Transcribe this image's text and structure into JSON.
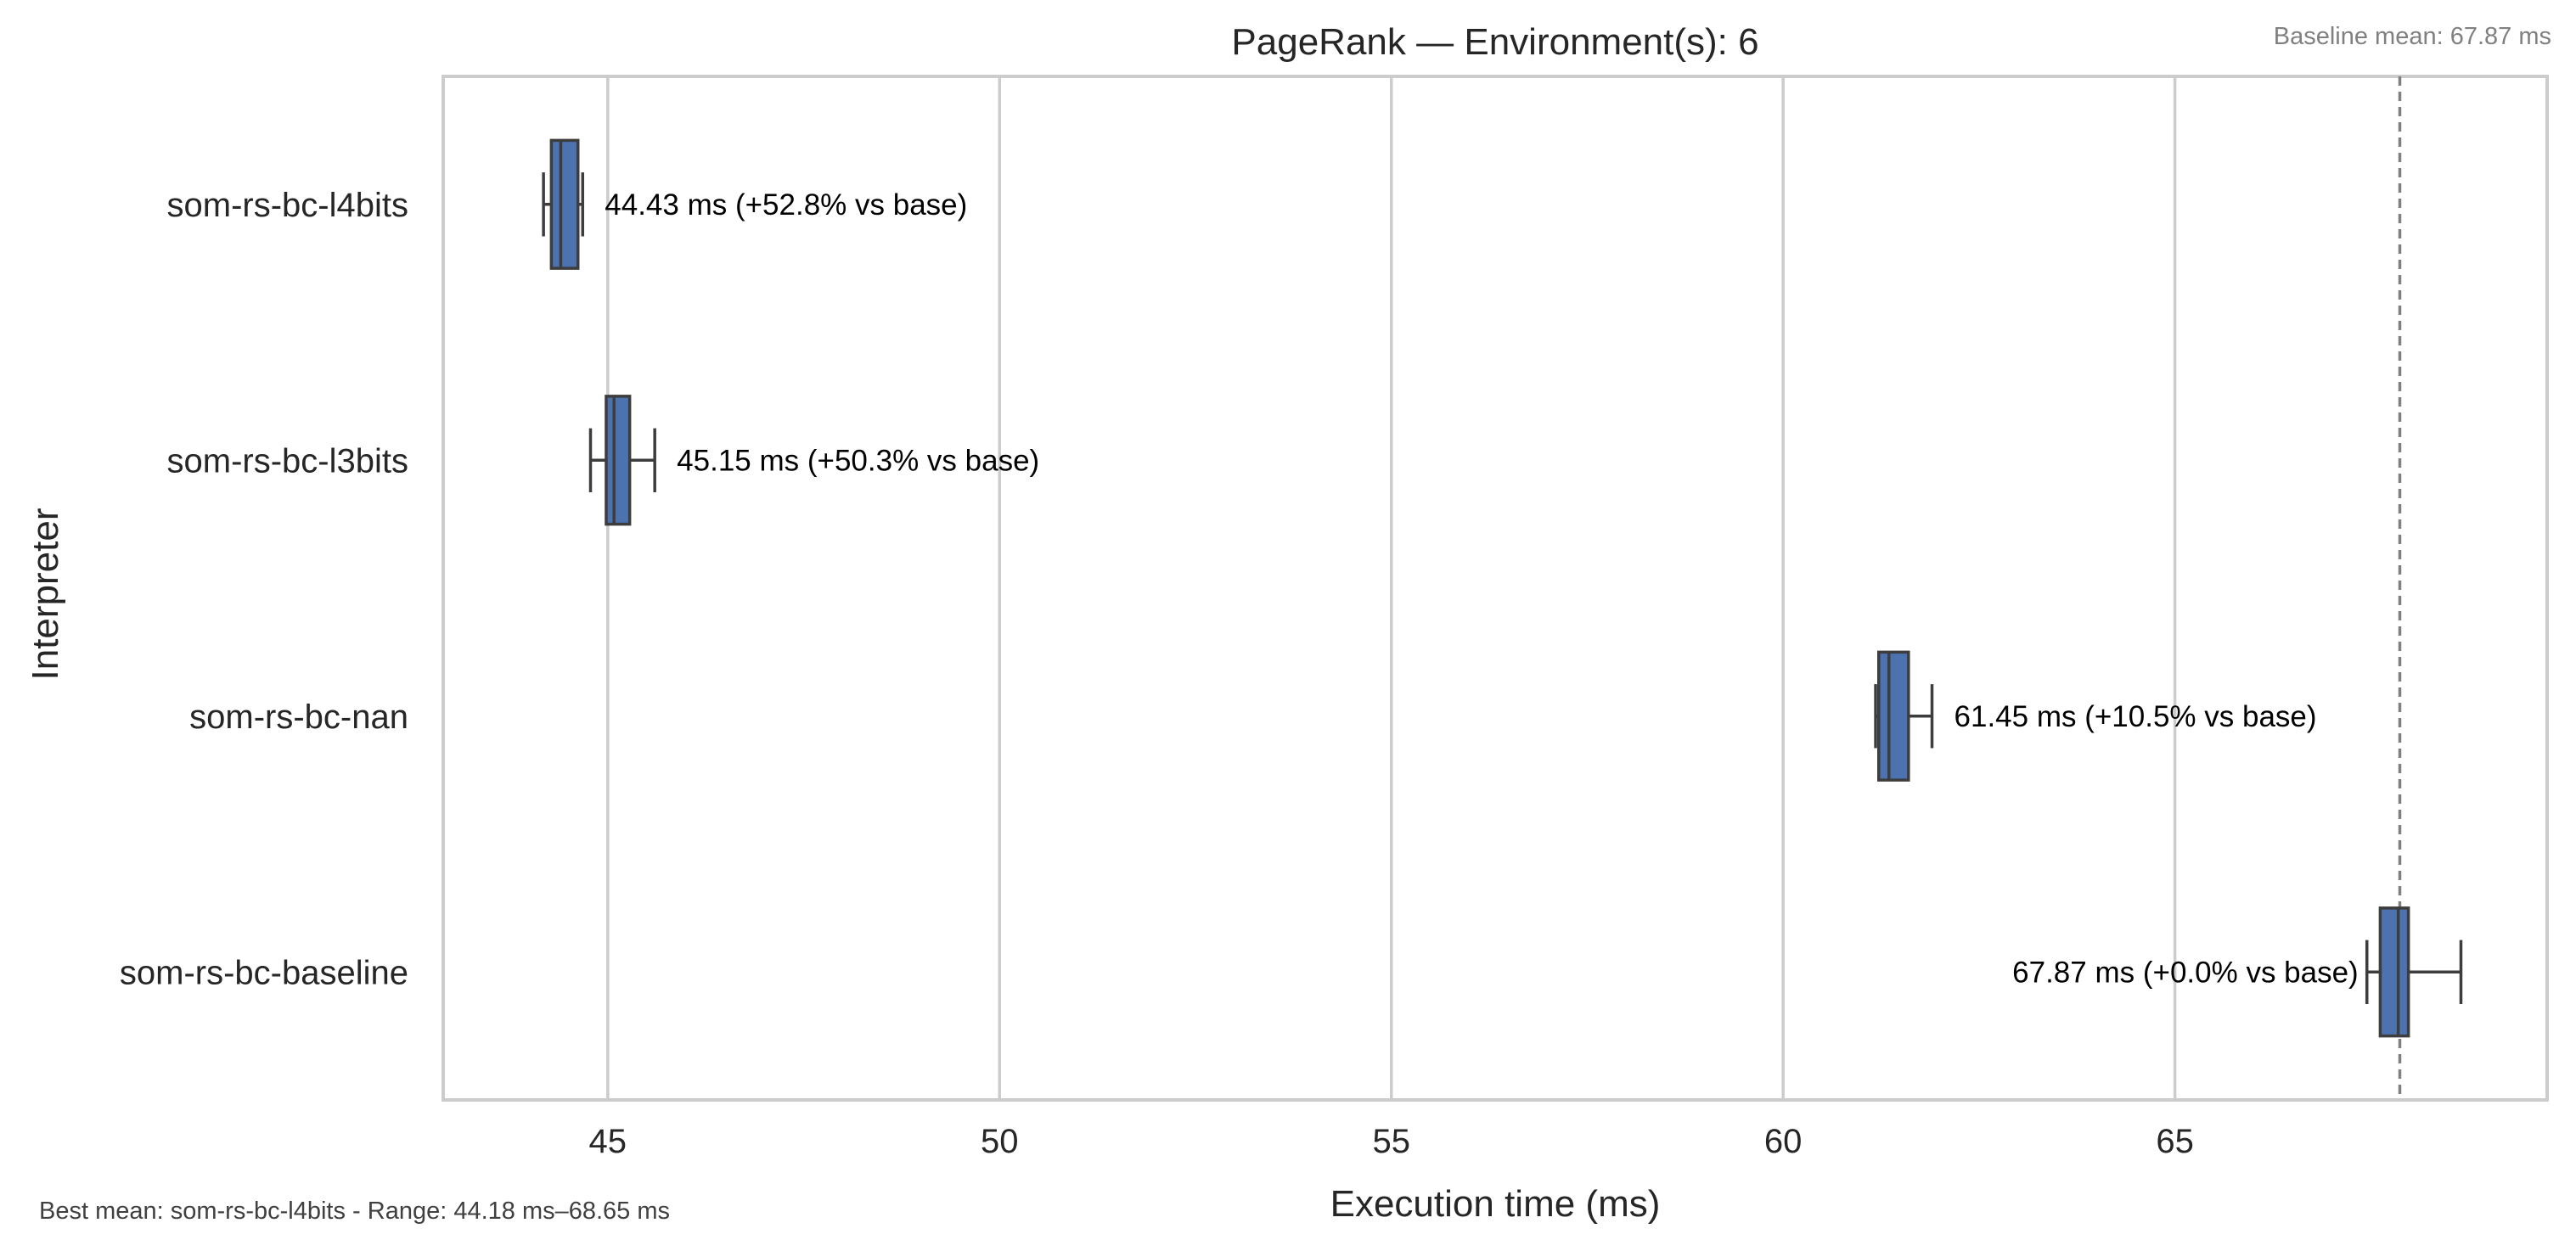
{
  "chart_data": {
    "type": "box",
    "title": "PageRank — Environment(s): 6",
    "xlabel": "Execution time (ms)",
    "ylabel": "Interpreter",
    "xlim": [
      42.9,
      69.75
    ],
    "xticks": [
      45,
      50,
      55,
      60,
      65
    ],
    "grid": true,
    "orientation": "horizontal",
    "categories": [
      "som-rs-bc-l4bits",
      "som-rs-bc-l3bits",
      "som-rs-bc-nan",
      "som-rs-bc-baseline"
    ],
    "boxes": [
      {
        "category": "som-rs-bc-l4bits",
        "whisker_low": 44.18,
        "q1": 44.28,
        "median": 44.4,
        "q3": 44.62,
        "whisker_high": 44.68,
        "mean": 44.43,
        "label": "44.43 ms  (+52.8% vs base)"
      },
      {
        "category": "som-rs-bc-l3bits",
        "whisker_low": 44.78,
        "q1": 44.98,
        "median": 45.08,
        "q3": 45.28,
        "whisker_high": 45.6,
        "mean": 45.15,
        "label": "45.15 ms  (+50.3% vs base)"
      },
      {
        "category": "som-rs-bc-nan",
        "whisker_low": 61.18,
        "q1": 61.22,
        "median": 61.35,
        "q3": 61.6,
        "whisker_high": 61.9,
        "mean": 61.45,
        "label": "61.45 ms  (+10.5% vs base)"
      },
      {
        "category": "som-rs-bc-baseline",
        "whisker_low": 67.45,
        "q1": 67.62,
        "median": 67.85,
        "q3": 67.98,
        "whisker_high": 68.65,
        "mean": 67.87,
        "label": "67.87 ms  (+0.0% vs base)"
      }
    ],
    "baseline_mean": 67.87,
    "baseline_note": "Baseline mean: 67.87 ms",
    "footer_note": "Best mean: som-rs-bc-l4bits - Range: 44.18 ms–68.65 ms"
  },
  "colors": {
    "box_fill": "#4c72b0",
    "box_edge": "#3d3d3d",
    "grid": "#cccccc",
    "baseline_line": "#808080"
  }
}
